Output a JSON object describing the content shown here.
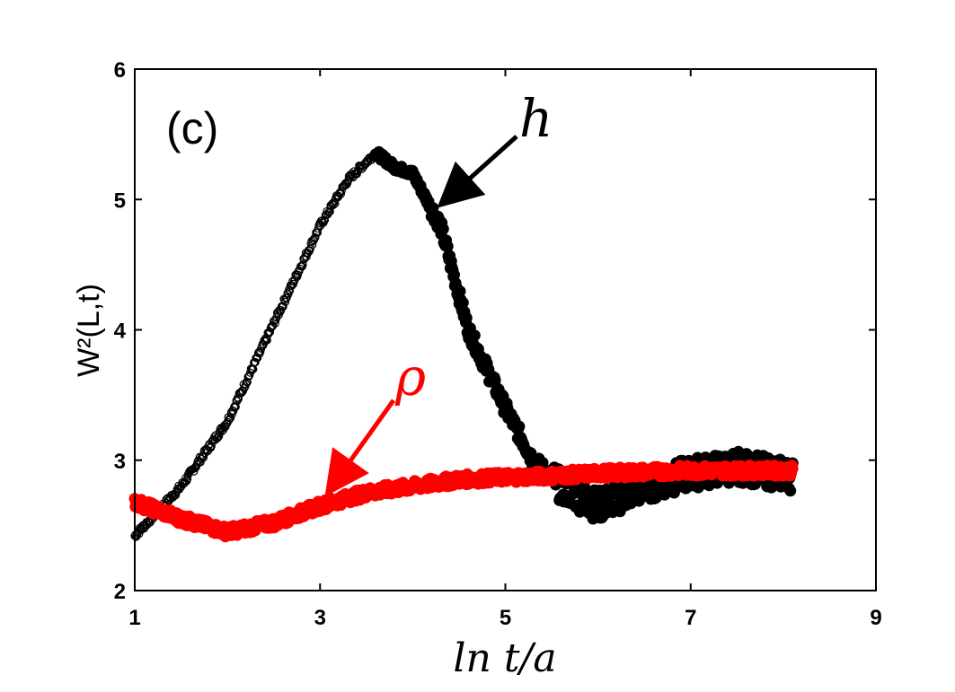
{
  "chart_data": {
    "type": "scatter",
    "panel_label": "(c)",
    "xlabel": "ln t/a",
    "ylabel": "W²(L,t)",
    "xlim": [
      1,
      9
    ],
    "ylim": [
      2,
      6
    ],
    "xticks": [
      1,
      3,
      5,
      7,
      9
    ],
    "yticks": [
      2,
      3,
      4,
      5,
      6
    ],
    "series": [
      {
        "name": "h",
        "color": "#000000",
        "x": [
          1.0,
          1.5,
          2.0,
          2.5,
          3.0,
          3.3,
          3.6,
          3.8,
          4.0,
          4.3,
          4.6,
          5.0,
          5.3,
          5.6,
          6.0,
          6.5,
          7.0,
          7.5,
          8.1
        ],
        "y": [
          2.42,
          2.8,
          3.3,
          4.05,
          4.8,
          5.15,
          5.36,
          5.25,
          5.2,
          4.8,
          4.0,
          3.4,
          3.0,
          2.8,
          2.65,
          2.8,
          2.9,
          2.95,
          2.88
        ]
      },
      {
        "name": "ρ",
        "color": "#ff0000",
        "x": [
          1.0,
          1.5,
          2.0,
          2.5,
          3.0,
          3.5,
          4.0,
          4.5,
          5.0,
          5.5,
          6.0,
          6.5,
          7.0,
          7.5,
          8.1
        ],
        "y": [
          2.68,
          2.55,
          2.45,
          2.52,
          2.65,
          2.75,
          2.8,
          2.85,
          2.87,
          2.88,
          2.9,
          2.91,
          2.92,
          2.92,
          2.92
        ]
      }
    ],
    "annotations": [
      {
        "text": "h",
        "target_series": "h",
        "color": "#000000"
      },
      {
        "text": "ρ",
        "target_series": "ρ",
        "color": "#ff0000"
      }
    ]
  }
}
